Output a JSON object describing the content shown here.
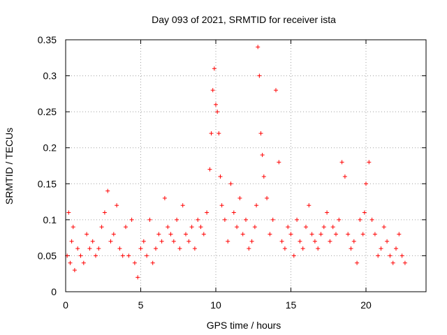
{
  "chart_data": {
    "type": "scatter",
    "title": "Day 093 of 2021, SRMTID for receiver ista",
    "xlabel": "GPS time / hours",
    "ylabel": "SRMTID / TECUs",
    "xlim": [
      0,
      24
    ],
    "ylim": [
      0,
      0.35
    ],
    "x_ticks": [
      0,
      5,
      10,
      15,
      20
    ],
    "x_tick_labels": [
      "0",
      "5",
      "10",
      "15",
      "20"
    ],
    "y_ticks": [
      0,
      0.05,
      0.1,
      0.15,
      0.2,
      0.25,
      0.3,
      0.35
    ],
    "y_tick_labels": [
      "0",
      "0.05",
      "0.1",
      "0.15",
      "0.2",
      "0.25",
      "0.3",
      "0.35"
    ],
    "grid": true,
    "marker": "plus",
    "series": [
      {
        "name": "SRMTID",
        "color": "#ff0000",
        "x": [
          0.1,
          0.2,
          0.3,
          0.4,
          0.5,
          0.6,
          0.8,
          1.0,
          1.2,
          1.4,
          1.6,
          1.8,
          2.0,
          2.2,
          2.4,
          2.6,
          2.8,
          3.0,
          3.2,
          3.4,
          3.6,
          3.8,
          4.0,
          4.2,
          4.4,
          4.6,
          4.8,
          5.0,
          5.2,
          5.4,
          5.6,
          5.8,
          6.0,
          6.2,
          6.4,
          6.6,
          6.8,
          7.0,
          7.2,
          7.4,
          7.6,
          7.8,
          8.0,
          8.2,
          8.4,
          8.6,
          8.8,
          9.0,
          9.2,
          9.4,
          9.6,
          9.7,
          9.8,
          9.9,
          10.0,
          10.1,
          10.2,
          10.3,
          10.4,
          10.6,
          10.8,
          11.0,
          11.2,
          11.4,
          11.6,
          11.8,
          12.0,
          12.2,
          12.4,
          12.6,
          12.7,
          12.8,
          12.9,
          13.0,
          13.1,
          13.2,
          13.4,
          13.6,
          13.8,
          14.0,
          14.2,
          14.4,
          14.6,
          14.8,
          15.0,
          15.2,
          15.4,
          15.6,
          15.8,
          16.0,
          16.2,
          16.4,
          16.6,
          16.8,
          17.0,
          17.2,
          17.4,
          17.6,
          17.8,
          18.0,
          18.2,
          18.4,
          18.6,
          18.8,
          19.0,
          19.2,
          19.4,
          19.6,
          19.8,
          19.9,
          20.0,
          20.2,
          20.4,
          20.6,
          20.8,
          21.0,
          21.2,
          21.4,
          21.6,
          21.8,
          22.0,
          22.2,
          22.4,
          22.6
        ],
        "y": [
          0.05,
          0.11,
          0.04,
          0.07,
          0.09,
          0.03,
          0.06,
          0.05,
          0.04,
          0.08,
          0.06,
          0.07,
          0.05,
          0.06,
          0.09,
          0.11,
          0.14,
          0.07,
          0.08,
          0.12,
          0.06,
          0.05,
          0.09,
          0.05,
          0.1,
          0.04,
          0.02,
          0.06,
          0.07,
          0.05,
          0.1,
          0.04,
          0.06,
          0.08,
          0.07,
          0.13,
          0.09,
          0.08,
          0.07,
          0.1,
          0.06,
          0.12,
          0.08,
          0.07,
          0.09,
          0.06,
          0.1,
          0.09,
          0.08,
          0.11,
          0.17,
          0.22,
          0.28,
          0.31,
          0.26,
          0.25,
          0.22,
          0.16,
          0.12,
          0.1,
          0.07,
          0.15,
          0.11,
          0.09,
          0.13,
          0.08,
          0.1,
          0.06,
          0.07,
          0.09,
          0.12,
          0.34,
          0.3,
          0.22,
          0.19,
          0.16,
          0.13,
          0.08,
          0.1,
          0.28,
          0.18,
          0.07,
          0.06,
          0.09,
          0.08,
          0.05,
          0.1,
          0.07,
          0.06,
          0.09,
          0.12,
          0.08,
          0.07,
          0.06,
          0.08,
          0.09,
          0.11,
          0.07,
          0.09,
          0.08,
          0.1,
          0.18,
          0.16,
          0.08,
          0.06,
          0.07,
          0.04,
          0.1,
          0.08,
          0.11,
          0.15,
          0.18,
          0.1,
          0.08,
          0.05,
          0.06,
          0.09,
          0.07,
          0.05,
          0.04,
          0.06,
          0.08,
          0.05,
          0.04
        ]
      }
    ]
  }
}
